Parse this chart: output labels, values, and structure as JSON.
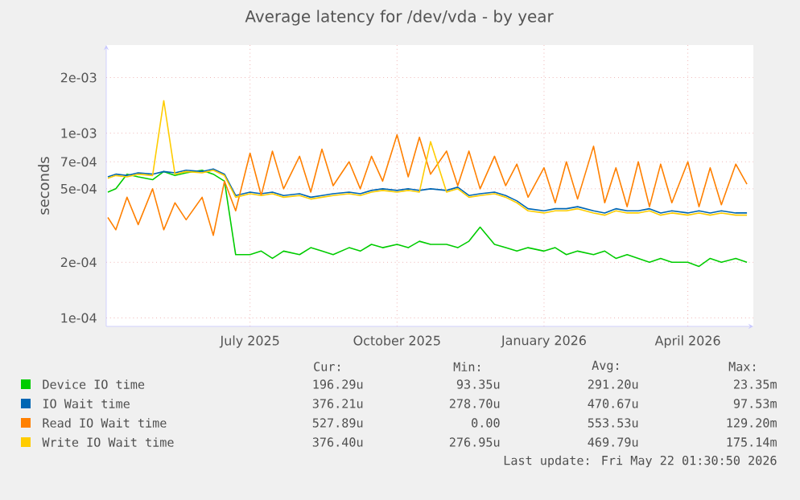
{
  "chart_data": {
    "type": "line",
    "title": "Average latency for /dev/vda - by year",
    "ylabel": "seconds",
    "log": true,
    "grid": true,
    "legend": "bottom",
    "xlim": [
      "2025-04-02",
      "2026-05-12"
    ],
    "xticks": [
      {
        "value": "2025-07-01",
        "label": "July 2025"
      },
      {
        "value": "2025-10-01",
        "label": "October 2025"
      },
      {
        "value": "2026-01-01",
        "label": "January 2026"
      },
      {
        "value": "2026-04-01",
        "label": "April 2026"
      }
    ],
    "ylim": [
      9e-05,
      0.003
    ],
    "yticks": [
      {
        "value": 0.0001,
        "label": "1e-04"
      },
      {
        "value": 0.0002,
        "label": "2e-04"
      },
      {
        "value": 0.0005,
        "label": "5e-04"
      },
      {
        "value": 0.0007,
        "label": "7e-04"
      },
      {
        "value": 0.001,
        "label": "1e-03"
      },
      {
        "value": 0.002,
        "label": "2e-03"
      }
    ],
    "x": [
      "2025-04-03",
      "2025-04-08",
      "2025-04-15",
      "2025-04-22",
      "2025-05-01",
      "2025-05-08",
      "2025-05-15",
      "2025-05-22",
      "2025-06-01",
      "2025-06-08",
      "2025-06-15",
      "2025-06-22",
      "2025-07-01",
      "2025-07-08",
      "2025-07-15",
      "2025-07-22",
      "2025-08-01",
      "2025-08-08",
      "2025-08-15",
      "2025-08-22",
      "2025-09-01",
      "2025-09-08",
      "2025-09-15",
      "2025-09-22",
      "2025-10-01",
      "2025-10-08",
      "2025-10-15",
      "2025-10-22",
      "2025-11-01",
      "2025-11-08",
      "2025-11-15",
      "2025-11-22",
      "2025-12-01",
      "2025-12-08",
      "2025-12-15",
      "2025-12-22",
      "2026-01-01",
      "2026-01-08",
      "2026-01-15",
      "2026-01-22",
      "2026-02-01",
      "2026-02-08",
      "2026-02-15",
      "2026-02-22",
      "2026-03-01",
      "2026-03-08",
      "2026-03-15",
      "2026-03-22",
      "2026-04-01",
      "2026-04-08",
      "2026-04-15",
      "2026-04-22",
      "2026-05-01",
      "2026-05-08"
    ],
    "series": [
      {
        "name": "Device IO time",
        "color": "#00cc00",
        "values": [
          0.00048,
          0.0005,
          0.0006,
          0.00058,
          0.00056,
          0.00062,
          0.00059,
          0.00061,
          0.00063,
          0.0006,
          0.00055,
          0.00022,
          0.00022,
          0.00023,
          0.00021,
          0.00023,
          0.00022,
          0.00024,
          0.00023,
          0.00022,
          0.00024,
          0.00023,
          0.00025,
          0.00024,
          0.00025,
          0.00024,
          0.00026,
          0.00025,
          0.00025,
          0.00024,
          0.00026,
          0.00031,
          0.00025,
          0.00024,
          0.00023,
          0.00024,
          0.00023,
          0.00024,
          0.00022,
          0.00023,
          0.00022,
          0.00023,
          0.00021,
          0.00022,
          0.00021,
          0.0002,
          0.00021,
          0.0002,
          0.0002,
          0.00019,
          0.00021,
          0.0002,
          0.00021,
          0.0002
        ]
      },
      {
        "name": "IO Wait time",
        "color": "#0066b3",
        "values": [
          0.00058,
          0.0006,
          0.00059,
          0.00061,
          0.0006,
          0.00062,
          0.00061,
          0.00063,
          0.00062,
          0.00064,
          0.0006,
          0.00046,
          0.00048,
          0.00047,
          0.00048,
          0.00046,
          0.00047,
          0.00045,
          0.00046,
          0.00047,
          0.00048,
          0.00047,
          0.00049,
          0.0005,
          0.00049,
          0.0005,
          0.00049,
          0.0005,
          0.00049,
          0.00051,
          0.00046,
          0.00047,
          0.00048,
          0.00046,
          0.00043,
          0.00039,
          0.00038,
          0.00039,
          0.00039,
          0.0004,
          0.00038,
          0.00037,
          0.00039,
          0.00038,
          0.00038,
          0.00039,
          0.00037,
          0.00038,
          0.00037,
          0.00038,
          0.00037,
          0.00038,
          0.00037,
          0.00037
        ]
      },
      {
        "name": "Read IO Wait time",
        "color": "#ff8000",
        "values": [
          0.00035,
          0.0003,
          0.00045,
          0.00032,
          0.0005,
          0.0003,
          0.00042,
          0.00034,
          0.00045,
          0.00028,
          0.00055,
          0.00038,
          0.00078,
          0.00046,
          0.0008,
          0.0005,
          0.00075,
          0.00048,
          0.00082,
          0.00052,
          0.0007,
          0.0005,
          0.00075,
          0.00055,
          0.00098,
          0.00058,
          0.00095,
          0.0006,
          0.0008,
          0.00052,
          0.0008,
          0.0005,
          0.00075,
          0.00052,
          0.00068,
          0.00045,
          0.00065,
          0.00042,
          0.0007,
          0.00044,
          0.00085,
          0.00042,
          0.00065,
          0.0004,
          0.0007,
          0.0004,
          0.00068,
          0.00042,
          0.0007,
          0.0004,
          0.00065,
          0.00041,
          0.00068,
          0.00053
        ]
      },
      {
        "name": "Write IO Wait time",
        "color": "#ffcc00",
        "values": [
          0.00057,
          0.00059,
          0.00058,
          0.0006,
          0.00059,
          0.0015,
          0.0006,
          0.00062,
          0.00061,
          0.00063,
          0.00059,
          0.00045,
          0.00047,
          0.00046,
          0.00047,
          0.00045,
          0.00046,
          0.00044,
          0.00045,
          0.00046,
          0.00047,
          0.00046,
          0.00048,
          0.00049,
          0.00048,
          0.00049,
          0.00048,
          0.0009,
          0.00048,
          0.0005,
          0.00045,
          0.00046,
          0.00047,
          0.00045,
          0.00042,
          0.00038,
          0.00037,
          0.00038,
          0.00038,
          0.00039,
          0.00037,
          0.00036,
          0.00038,
          0.00037,
          0.00037,
          0.00038,
          0.00036,
          0.00037,
          0.00036,
          0.00037,
          0.00036,
          0.00037,
          0.00036,
          0.00036
        ]
      }
    ],
    "annotations": [
      "Cur:",
      "Min:",
      "Avg:",
      "Max:",
      "196.29u",
      "93.35u",
      "291.20u",
      "23.35m",
      "376.21u",
      "278.70u",
      "470.67u",
      "97.53m",
      "527.89u",
      "0.00",
      "553.53u",
      "129.20m",
      "376.40u",
      "276.95u",
      "469.79u",
      "175.14m",
      "Last update: Fri May 22 01:30:50 2026"
    ]
  }
}
